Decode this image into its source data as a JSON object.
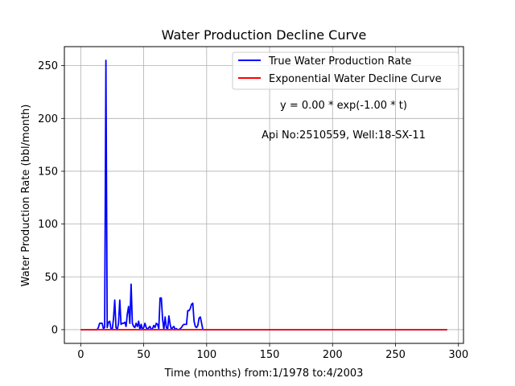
{
  "chart_data": {
    "type": "line",
    "title": "Water Production Decline Curve",
    "xlabel": "Time (months) from:1/1978 to:4/2003",
    "ylabel": "Water Production Rate (bbl/month)",
    "xlim": [
      -13,
      304
    ],
    "ylim": [
      -13,
      268
    ],
    "xticks": [
      0,
      50,
      100,
      150,
      200,
      250,
      300
    ],
    "yticks": [
      0,
      50,
      100,
      150,
      200,
      250
    ],
    "grid": true,
    "legend_position": "top-right",
    "series": [
      {
        "name": "True Water Production Rate",
        "color": "#0000ff",
        "x": [
          0,
          1,
          2,
          3,
          4,
          5,
          6,
          7,
          8,
          9,
          10,
          11,
          12,
          13,
          14,
          15,
          16,
          17,
          18,
          19,
          20,
          21,
          22,
          23,
          24,
          25,
          26,
          27,
          28,
          29,
          30,
          31,
          32,
          33,
          34,
          35,
          36,
          37,
          38,
          39,
          40,
          41,
          42,
          43,
          44,
          45,
          46,
          47,
          48,
          49,
          50,
          51,
          52,
          53,
          54,
          55,
          56,
          57,
          58,
          59,
          60,
          61,
          62,
          63,
          64,
          65,
          66,
          67,
          68,
          69,
          70,
          71,
          72,
          73,
          74,
          75,
          76,
          77,
          78,
          79,
          80,
          81,
          82,
          83,
          84,
          85,
          86,
          87,
          88,
          89,
          90,
          91,
          92,
          93,
          94,
          95,
          96,
          97,
          98,
          99,
          100,
          120,
          150,
          200,
          250,
          291
        ],
        "y": [
          0,
          0,
          0,
          0,
          0,
          0,
          0,
          0,
          0,
          0,
          0,
          0,
          0,
          0,
          2,
          6,
          6,
          6,
          1,
          2,
          255,
          2,
          7,
          8,
          1,
          0,
          10,
          28,
          2,
          0,
          6,
          28,
          5,
          6,
          6,
          7,
          3,
          15,
          22,
          6,
          43,
          6,
          3,
          2,
          6,
          3,
          8,
          0,
          5,
          0,
          2,
          6,
          2,
          0,
          2,
          3,
          0,
          1,
          4,
          2,
          6,
          5,
          1,
          30,
          30,
          10,
          0,
          12,
          2,
          0,
          13,
          5,
          0,
          2,
          3,
          0,
          1,
          0,
          0,
          1,
          2,
          4,
          5,
          5,
          5,
          18,
          18,
          20,
          24,
          25,
          8,
          3,
          2,
          4,
          11,
          12,
          6,
          0,
          0,
          0,
          0,
          0,
          0,
          0,
          0,
          0
        ]
      },
      {
        "name": "Exponential Water Decline Curve",
        "color": "#ff0000",
        "x": [
          0,
          291
        ],
        "y": [
          0,
          0
        ]
      }
    ],
    "annotations": [
      {
        "text": "y = 0.00 * exp(-1.00 * t)"
      },
      {
        "text": "Api No:2510559, Well:18-SX-11"
      }
    ]
  }
}
